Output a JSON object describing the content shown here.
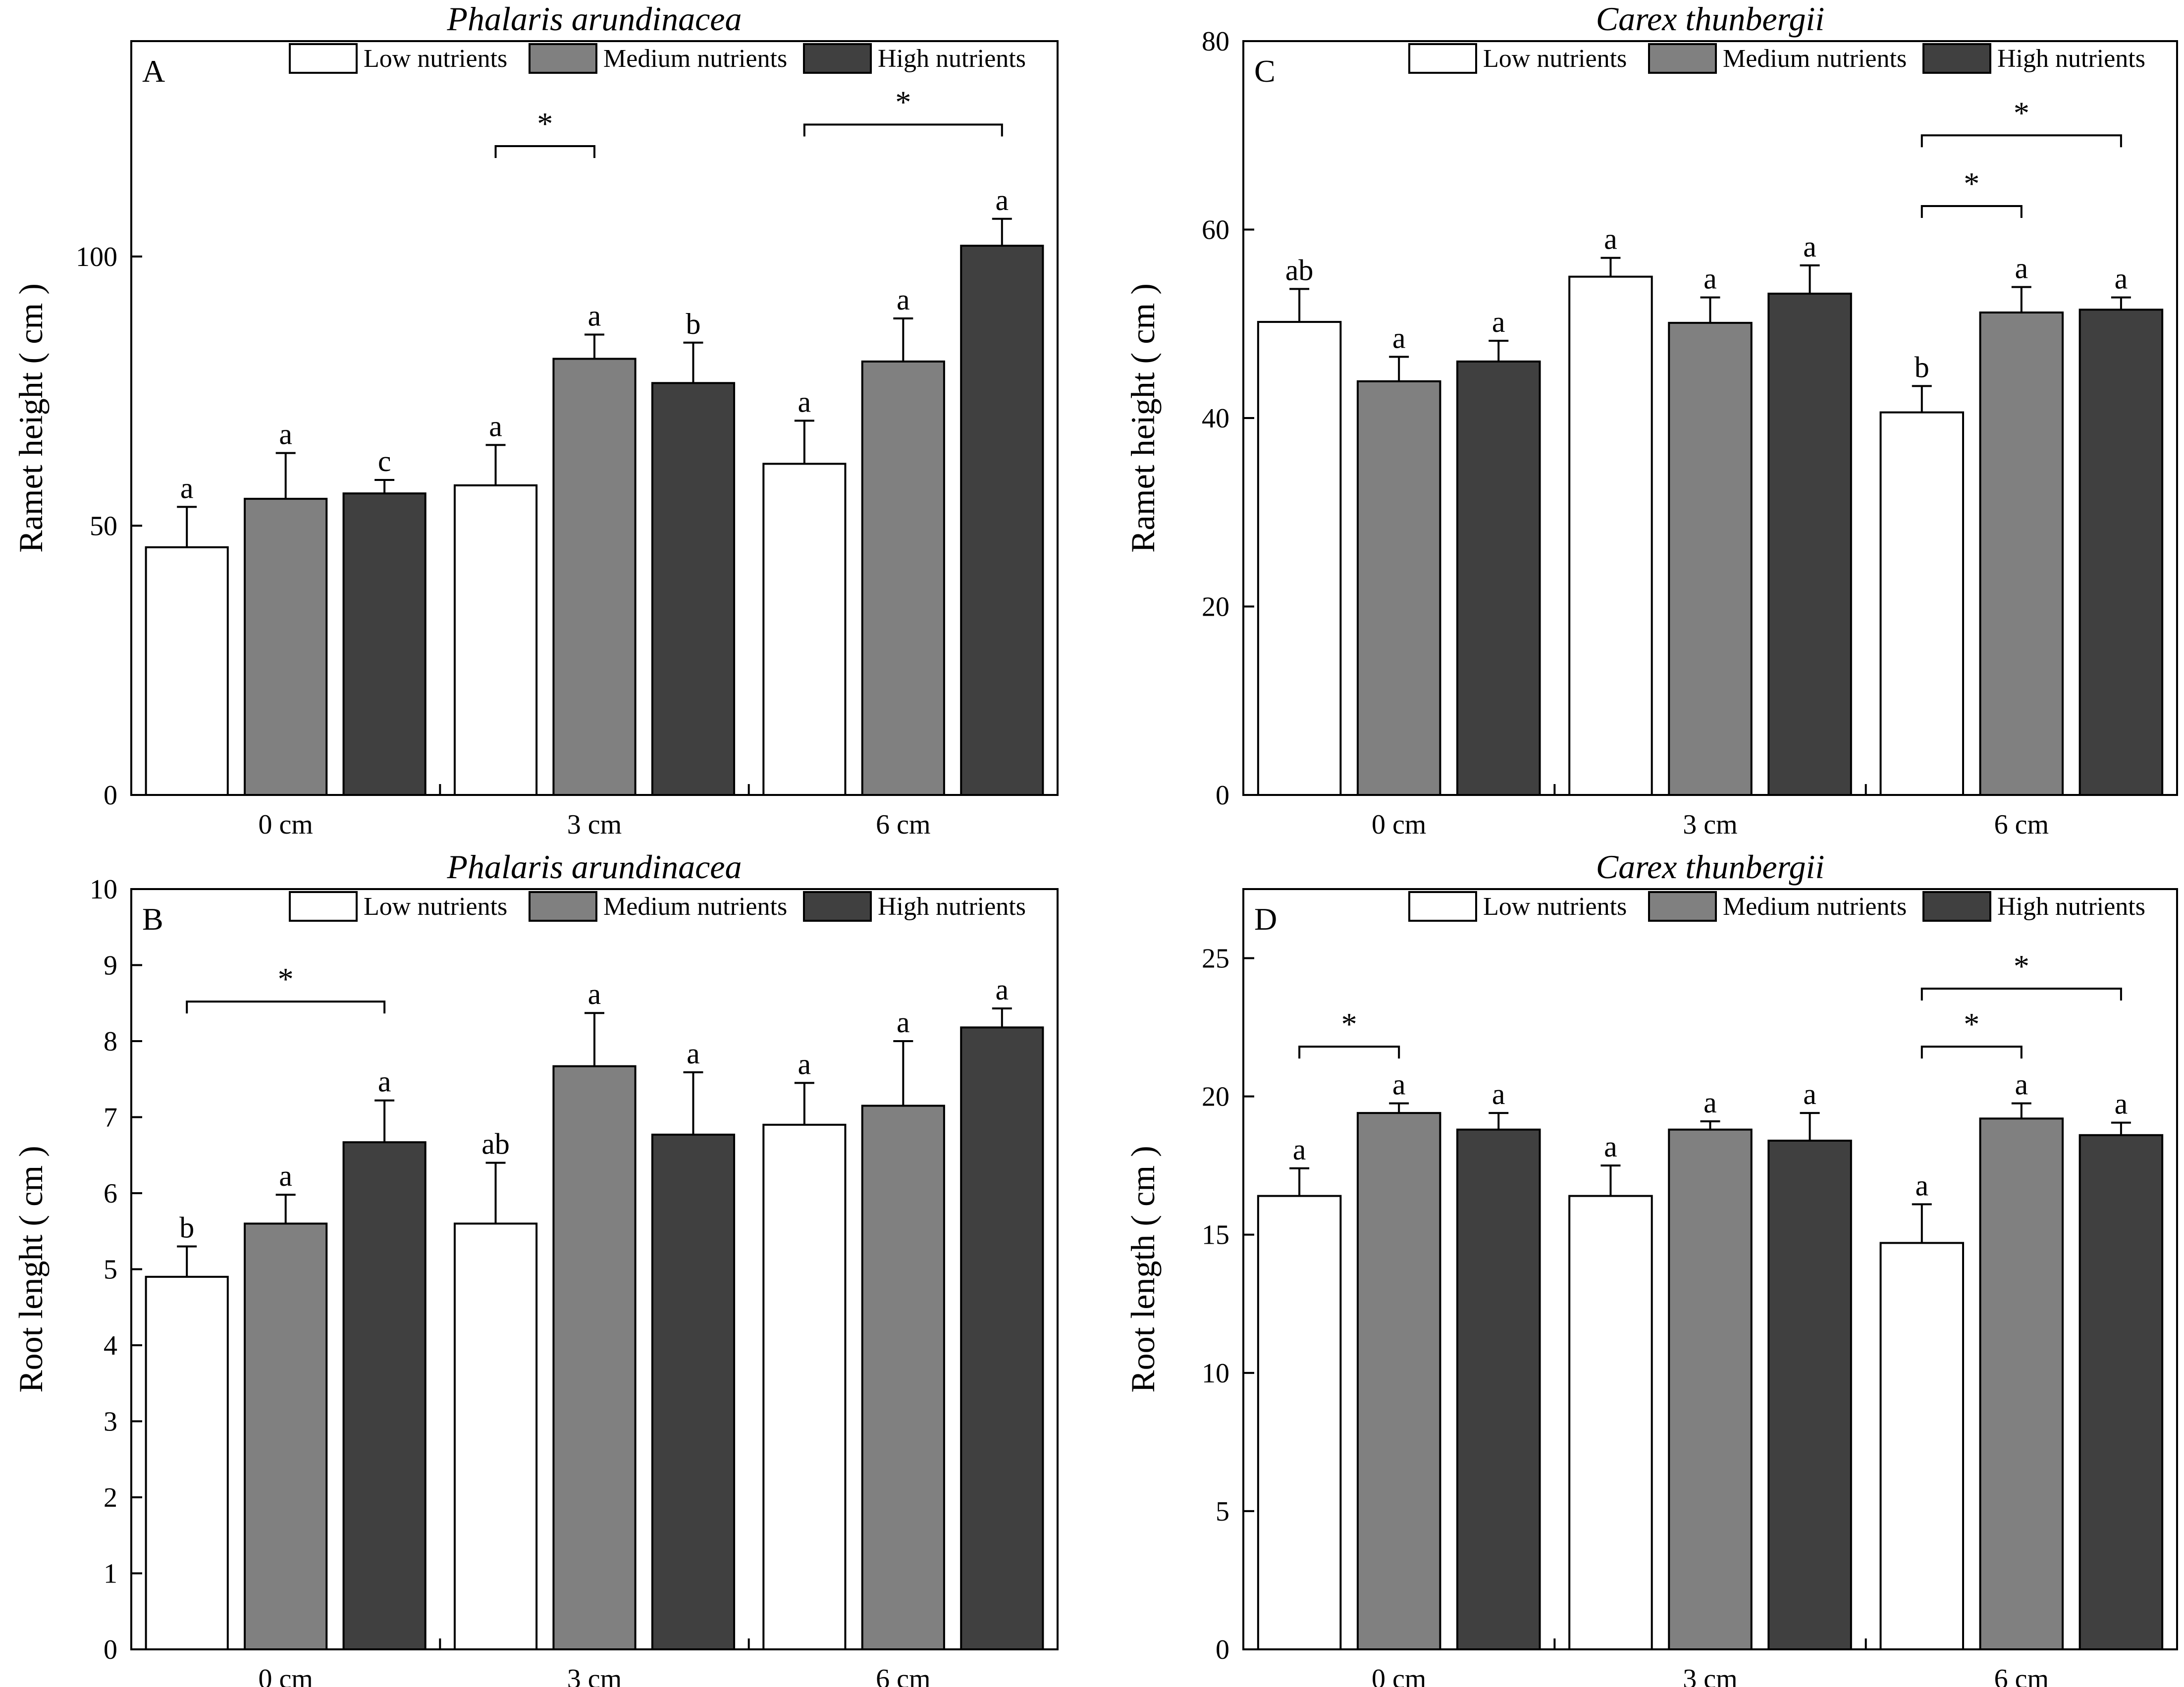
{
  "figure": {
    "legend_labels": [
      "Low nutrients",
      "Medium nutrients",
      "High nutrients"
    ],
    "series_colors": [
      "#ffffff",
      "#808080",
      "#404040"
    ]
  },
  "chart_data": [
    {
      "id": "A",
      "type": "bar",
      "panel_label": "A",
      "title": "Phalaris arundinacea",
      "ylabel": "Ramet height ( cm )",
      "xlabel": "",
      "ylim": [
        0,
        140
      ],
      "yticks": [
        0,
        50,
        100
      ],
      "categories": [
        "0 cm",
        "3 cm",
        "6 cm"
      ],
      "series": [
        {
          "name": "Low nutrients",
          "values": [
            46,
            57.5,
            61.5
          ],
          "errors": [
            7.5,
            7.5,
            8
          ],
          "letters": [
            "a",
            "a",
            "a"
          ]
        },
        {
          "name": "Medium nutrients",
          "values": [
            55,
            81,
            80.5
          ],
          "errors": [
            8.5,
            4.5,
            8
          ],
          "letters": [
            "a",
            "a",
            "a"
          ]
        },
        {
          "name": "High nutrients",
          "values": [
            56,
            76.5,
            102
          ],
          "errors": [
            2.5,
            7.5,
            5
          ],
          "letters": [
            "c",
            "b",
            "a"
          ]
        }
      ],
      "significance": [
        {
          "category": 1,
          "from": 0,
          "to": 1,
          "y": 120.5,
          "label": "*"
        },
        {
          "category": 2,
          "from": 0,
          "to": 2,
          "y": 124.5,
          "label": "*"
        }
      ]
    },
    {
      "id": "B",
      "type": "bar",
      "panel_label": "B",
      "title": "Phalaris arundinacea",
      "ylabel": "Root lenght ( cm )",
      "xlabel": "",
      "ylim": [
        0,
        10
      ],
      "yticks": [
        0,
        1,
        2,
        3,
        4,
        5,
        6,
        7,
        8,
        9,
        10
      ],
      "categories": [
        "0 cm",
        "3 cm",
        "6 cm"
      ],
      "series": [
        {
          "name": "Low nutrients",
          "values": [
            4.9,
            5.6,
            6.9
          ],
          "errors": [
            0.4,
            0.8,
            0.55
          ],
          "letters": [
            "b",
            "ab",
            "a"
          ]
        },
        {
          "name": "Medium nutrients",
          "values": [
            5.6,
            7.67,
            7.15
          ],
          "errors": [
            0.38,
            0.7,
            0.85
          ],
          "letters": [
            "a",
            "a",
            "a"
          ]
        },
        {
          "name": "High nutrients",
          "values": [
            6.67,
            6.77,
            8.18
          ],
          "errors": [
            0.55,
            0.82,
            0.25
          ],
          "letters": [
            "a",
            "a",
            "a"
          ]
        }
      ],
      "significance": [
        {
          "category": 0,
          "from": 0,
          "to": 2,
          "y": 8.52,
          "label": "*"
        }
      ]
    },
    {
      "id": "C",
      "type": "bar",
      "panel_label": "C",
      "title": "Carex thunbergii",
      "ylabel": "Ramet height ( cm )",
      "xlabel": "",
      "ylim": [
        0,
        80
      ],
      "yticks": [
        0,
        20,
        40,
        60,
        80
      ],
      "categories": [
        "0 cm",
        "3 cm",
        "6 cm"
      ],
      "series": [
        {
          "name": "Low nutrients",
          "values": [
            50.2,
            55,
            40.6
          ],
          "errors": [
            3.5,
            2,
            2.8
          ],
          "letters": [
            "ab",
            "a",
            "b"
          ]
        },
        {
          "name": "Medium nutrients",
          "values": [
            43.9,
            50.1,
            51.2
          ],
          "errors": [
            2.6,
            2.7,
            2.7
          ],
          "letters": [
            "a",
            "a",
            "a"
          ]
        },
        {
          "name": "High nutrients",
          "values": [
            46,
            53.2,
            51.5
          ],
          "errors": [
            2.2,
            3,
            1.3
          ],
          "letters": [
            "a",
            "a",
            "a"
          ]
        }
      ],
      "significance": [
        {
          "category": 2,
          "from": 0,
          "to": 1,
          "y": 62.5,
          "label": "*"
        },
        {
          "category": 2,
          "from": 0,
          "to": 2,
          "y": 70,
          "label": "*"
        }
      ]
    },
    {
      "id": "D",
      "type": "bar",
      "panel_label": "D",
      "title": "Carex thunbergii",
      "ylabel": "Root length ( cm )",
      "xlabel": "",
      "ylim": [
        0,
        27.5
      ],
      "yticks": [
        0,
        5,
        10,
        15,
        20,
        25
      ],
      "categories": [
        "0 cm",
        "3 cm",
        "6 cm"
      ],
      "series": [
        {
          "name": "Low nutrients",
          "values": [
            16.4,
            16.4,
            14.7
          ],
          "errors": [
            1,
            1.1,
            1.4
          ],
          "letters": [
            "a",
            "a",
            "a"
          ]
        },
        {
          "name": "Medium nutrients",
          "values": [
            19.4,
            18.8,
            19.2
          ],
          "errors": [
            0.35,
            0.3,
            0.55
          ],
          "letters": [
            "a",
            "a",
            "a"
          ]
        },
        {
          "name": "High nutrients",
          "values": [
            18.8,
            18.4,
            18.6
          ],
          "errors": [
            0.6,
            1,
            0.45
          ],
          "letters": [
            "a",
            "a",
            "a"
          ]
        }
      ],
      "significance": [
        {
          "category": 0,
          "from": 0,
          "to": 1,
          "y": 21.8,
          "label": "*"
        },
        {
          "category": 2,
          "from": 0,
          "to": 1,
          "y": 21.8,
          "label": "*"
        },
        {
          "category": 2,
          "from": 0,
          "to": 2,
          "y": 23.9,
          "label": "*"
        }
      ]
    }
  ]
}
